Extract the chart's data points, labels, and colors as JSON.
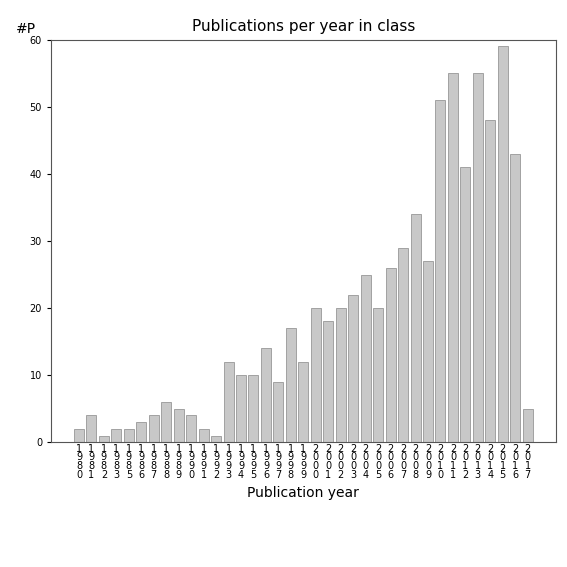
{
  "title": "Publications per year in class",
  "xlabel": "Publication year",
  "ylabel": "#P",
  "tick_labels": [
    [
      "1",
      "9",
      "8",
      "0"
    ],
    [
      "1",
      "9",
      "8",
      "1"
    ],
    [
      "1",
      "9",
      "8",
      "2"
    ],
    [
      "1",
      "9",
      "8",
      "3"
    ],
    [
      "1",
      "9",
      "8",
      "5"
    ],
    [
      "1",
      "9",
      "8",
      "6"
    ],
    [
      "1",
      "9",
      "8",
      "7"
    ],
    [
      "1",
      "9",
      "8",
      "8"
    ],
    [
      "1",
      "9",
      "8",
      "9"
    ],
    [
      "1",
      "9",
      "9",
      "0"
    ],
    [
      "1",
      "9",
      "9",
      "1"
    ],
    [
      "1",
      "9",
      "9",
      "2"
    ],
    [
      "1",
      "9",
      "9",
      "3"
    ],
    [
      "1",
      "9",
      "9",
      "4"
    ],
    [
      "1",
      "9",
      "9",
      "5"
    ],
    [
      "1",
      "9",
      "9",
      "6"
    ],
    [
      "1",
      "9",
      "9",
      "7"
    ],
    [
      "1",
      "9",
      "9",
      "8"
    ],
    [
      "1",
      "9",
      "9",
      "9"
    ],
    [
      "2",
      "0",
      "0",
      "0"
    ],
    [
      "2",
      "0",
      "0",
      "1"
    ],
    [
      "2",
      "0",
      "0",
      "2"
    ],
    [
      "2",
      "0",
      "0",
      "3"
    ],
    [
      "2",
      "0",
      "0",
      "4"
    ],
    [
      "2",
      "0",
      "0",
      "5"
    ],
    [
      "2",
      "0",
      "0",
      "6"
    ],
    [
      "2",
      "0",
      "0",
      "7"
    ],
    [
      "2",
      "0",
      "0",
      "8"
    ],
    [
      "2",
      "0",
      "0",
      "9"
    ],
    [
      "2",
      "0",
      "1",
      "0"
    ],
    [
      "2",
      "0",
      "1",
      "1"
    ],
    [
      "2",
      "0",
      "1",
      "2"
    ],
    [
      "2",
      "0",
      "1",
      "3"
    ],
    [
      "2",
      "0",
      "1",
      "4"
    ],
    [
      "2",
      "0",
      "1",
      "5"
    ],
    [
      "2",
      "0",
      "1",
      "6"
    ],
    [
      "2",
      "0",
      "1",
      "7"
    ]
  ],
  "values": [
    2,
    4,
    1,
    2,
    2,
    3,
    4,
    6,
    5,
    4,
    2,
    1,
    12,
    10,
    10,
    14,
    9,
    17,
    12,
    20,
    18,
    20,
    22,
    25,
    20,
    26,
    29,
    34,
    27,
    51,
    55,
    41,
    55,
    48,
    59,
    43,
    5
  ],
  "bar_color": "#c8c8c8",
  "bar_edgecolor": "#888888",
  "ylim": [
    0,
    60
  ],
  "yticks": [
    0,
    10,
    20,
    30,
    40,
    50,
    60
  ],
  "background_color": "#ffffff",
  "title_fontsize": 11,
  "label_fontsize": 10,
  "tick_fontsize": 7
}
